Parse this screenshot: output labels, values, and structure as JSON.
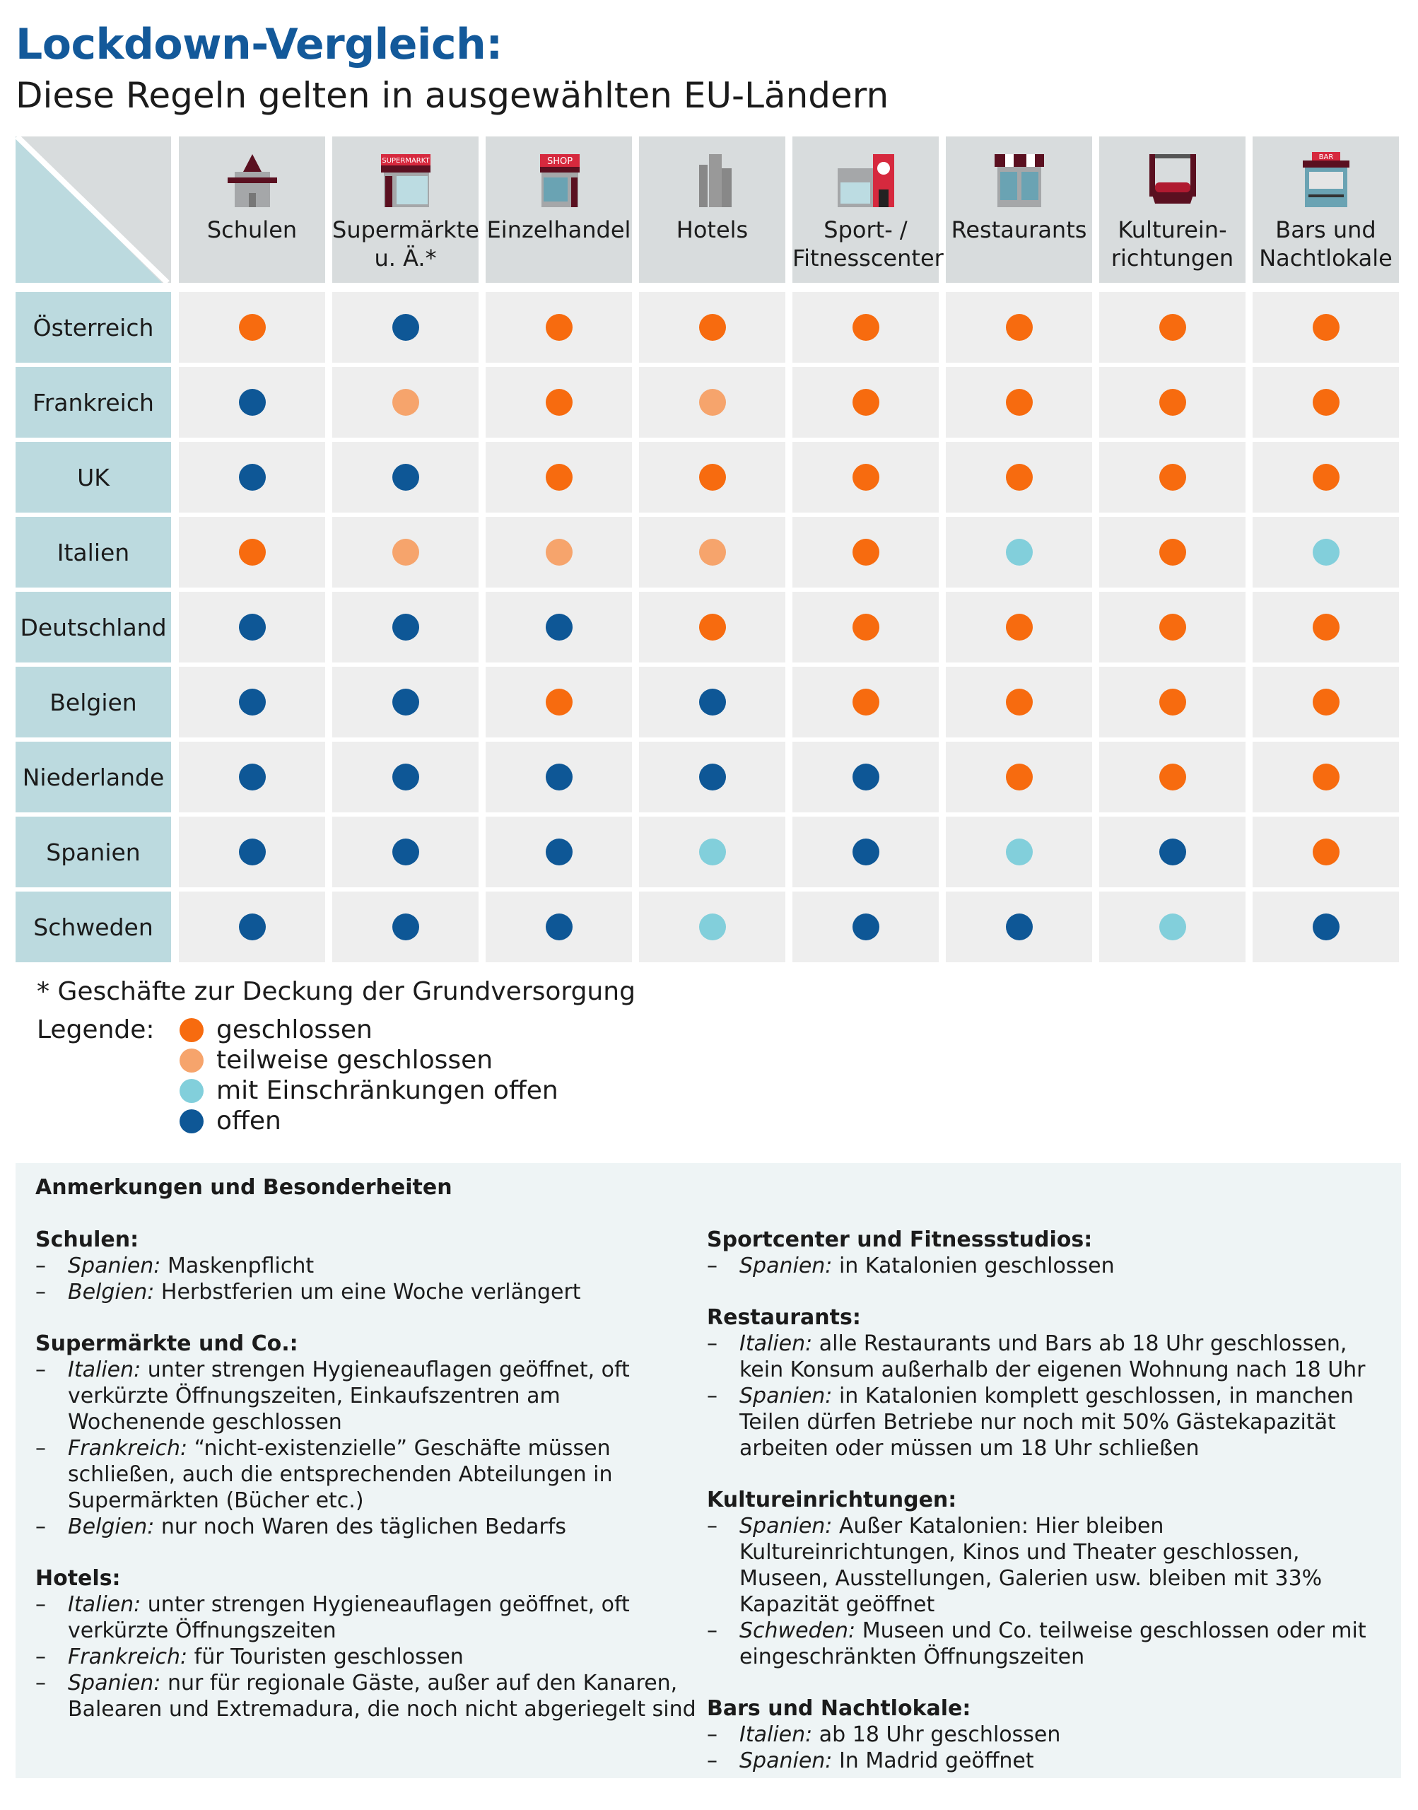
{
  "title": "Lockdown-Vergleich:",
  "subtitle": "Diese Regeln gelten in ausgewählten EU-Ländern",
  "colors": {
    "geschlossen": "#f76b0f",
    "teilweise": "#f6a46c",
    "eingeschraenkt": "#82cfdb",
    "offen": "#0e5796"
  },
  "chart_data": {
    "type": "table",
    "columns": [
      {
        "label": "Schulen",
        "icon": "school-icon"
      },
      {
        "label": "Supermärkte u. Ä.*",
        "icon": "supermarket-icon",
        "sign": "SUPERMARKT"
      },
      {
        "label": "Einzelhandel",
        "icon": "shop-icon",
        "sign": "SHOP"
      },
      {
        "label": "Hotels",
        "icon": "hotel-icon"
      },
      {
        "label": "Sport- / Fitnesscenter",
        "icon": "fitness-center-icon"
      },
      {
        "label": "Restaurants",
        "icon": "restaurant-icon"
      },
      {
        "label": "Kulturein-richtungen",
        "icon": "theater-icon"
      },
      {
        "label": "Bars und Nachtlokale",
        "icon": "bar-icon",
        "sign": "BAR"
      }
    ],
    "rows": [
      {
        "country": "Österreich",
        "values": [
          "geschlossen",
          "offen",
          "geschlossen",
          "geschlossen",
          "geschlossen",
          "geschlossen",
          "geschlossen",
          "geschlossen"
        ]
      },
      {
        "country": "Frankreich",
        "values": [
          "offen",
          "teilweise",
          "geschlossen",
          "teilweise",
          "geschlossen",
          "geschlossen",
          "geschlossen",
          "geschlossen"
        ]
      },
      {
        "country": "UK",
        "values": [
          "offen",
          "offen",
          "geschlossen",
          "geschlossen",
          "geschlossen",
          "geschlossen",
          "geschlossen",
          "geschlossen"
        ]
      },
      {
        "country": "Italien",
        "values": [
          "geschlossen",
          "teilweise",
          "teilweise",
          "teilweise",
          "geschlossen",
          "eingeschraenkt",
          "geschlossen",
          "eingeschraenkt"
        ]
      },
      {
        "country": "Deutschland",
        "values": [
          "offen",
          "offen",
          "offen",
          "geschlossen",
          "geschlossen",
          "geschlossen",
          "geschlossen",
          "geschlossen"
        ]
      },
      {
        "country": "Belgien",
        "values": [
          "offen",
          "offen",
          "geschlossen",
          "offen",
          "geschlossen",
          "geschlossen",
          "geschlossen",
          "geschlossen"
        ]
      },
      {
        "country": "Niederlande",
        "values": [
          "offen",
          "offen",
          "offen",
          "offen",
          "offen",
          "geschlossen",
          "geschlossen",
          "geschlossen"
        ]
      },
      {
        "country": "Spanien",
        "values": [
          "offen",
          "offen",
          "offen",
          "eingeschraenkt",
          "offen",
          "eingeschraenkt",
          "offen",
          "geschlossen"
        ]
      },
      {
        "country": "Schweden",
        "values": [
          "offen",
          "offen",
          "offen",
          "eingeschraenkt",
          "offen",
          "offen",
          "eingeschraenkt",
          "offen"
        ]
      }
    ]
  },
  "footnote": "* Geschäfte zur Deckung der Grundversorgung",
  "legend": {
    "label": "Legende:",
    "items": [
      {
        "key": "geschlossen",
        "text": "geschlossen"
      },
      {
        "key": "teilweise",
        "text": "teilweise geschlossen"
      },
      {
        "key": "eingeschraenkt",
        "text": "mit Einschränkungen offen"
      },
      {
        "key": "offen",
        "text": "offen"
      }
    ]
  },
  "notes": {
    "heading": "Anmerkungen und Besonderheiten",
    "left": [
      {
        "title": "Schulen:",
        "items": [
          {
            "country": "Spanien:",
            "text": " Maskenpflicht"
          },
          {
            "country": "Belgien:",
            "text": " Herbstferien um eine Woche verlängert"
          }
        ]
      },
      {
        "title": "Supermärkte und Co.:",
        "items": [
          {
            "country": "Italien:",
            "text": " unter strengen Hygieneauflagen geöffnet, oft verkürzte Öffnungszeiten, Einkaufszentren am Wochenende geschlossen"
          },
          {
            "country": "Frankreich:",
            "text": " “nicht-existenzielle” Geschäfte müssen schließen, auch die entsprechenden Abteilungen in Supermärkten (Bücher etc.)"
          },
          {
            "country": "Belgien:",
            "text": " nur noch Waren des täglichen Bedarfs"
          }
        ]
      },
      {
        "title": "Hotels:",
        "items": [
          {
            "country": "Italien:",
            "text": " unter strengen Hygieneauflagen geöffnet, oft verkürzte Öffnungszeiten"
          },
          {
            "country": "Frankreich:",
            "text": " für Touristen geschlossen"
          },
          {
            "country": "Spanien:",
            "text": " nur für regionale Gäste, außer auf den Kanaren, Balearen und Extremadura, die noch nicht abgeriegelt sind"
          }
        ]
      }
    ],
    "right": [
      {
        "title": "Sportcenter und Fitnessstudios:",
        "items": [
          {
            "country": "Spanien:",
            "text": " in Katalonien geschlossen"
          }
        ]
      },
      {
        "title": "Restaurants:",
        "items": [
          {
            "country": "Italien:",
            "text": " alle Restaurants und Bars ab 18 Uhr geschlossen, kein Konsum außerhalb der eigenen Wohnung nach 18 Uhr"
          },
          {
            "country": "Spanien:",
            "text": " in Katalonien komplett geschlossen, in manchen Teilen dürfen Betriebe nur noch mit 50% Gästekapazität arbeiten oder müssen um 18 Uhr schließen"
          }
        ]
      },
      {
        "title": "Kultureinrichtungen:",
        "items": [
          {
            "country": "Spanien:",
            "text": " Außer Katalonien: Hier bleiben Kultureinrichtungen, Kinos und Theater geschlossen, Museen, Ausstellungen, Galerien usw. bleiben mit 33% Kapazität geöffnet"
          },
          {
            "country": "Schweden:",
            "text": " Museen und Co. teilweise geschlossen oder mit eingeschränkten Öffnungszeiten"
          }
        ]
      },
      {
        "title": "Bars und Nachtlokale:",
        "items": [
          {
            "country": "Italien:",
            "text": " ab 18 Uhr geschlossen"
          },
          {
            "country": "Spanien:",
            "text": " In Madrid geöffnet"
          }
        ]
      }
    ]
  }
}
